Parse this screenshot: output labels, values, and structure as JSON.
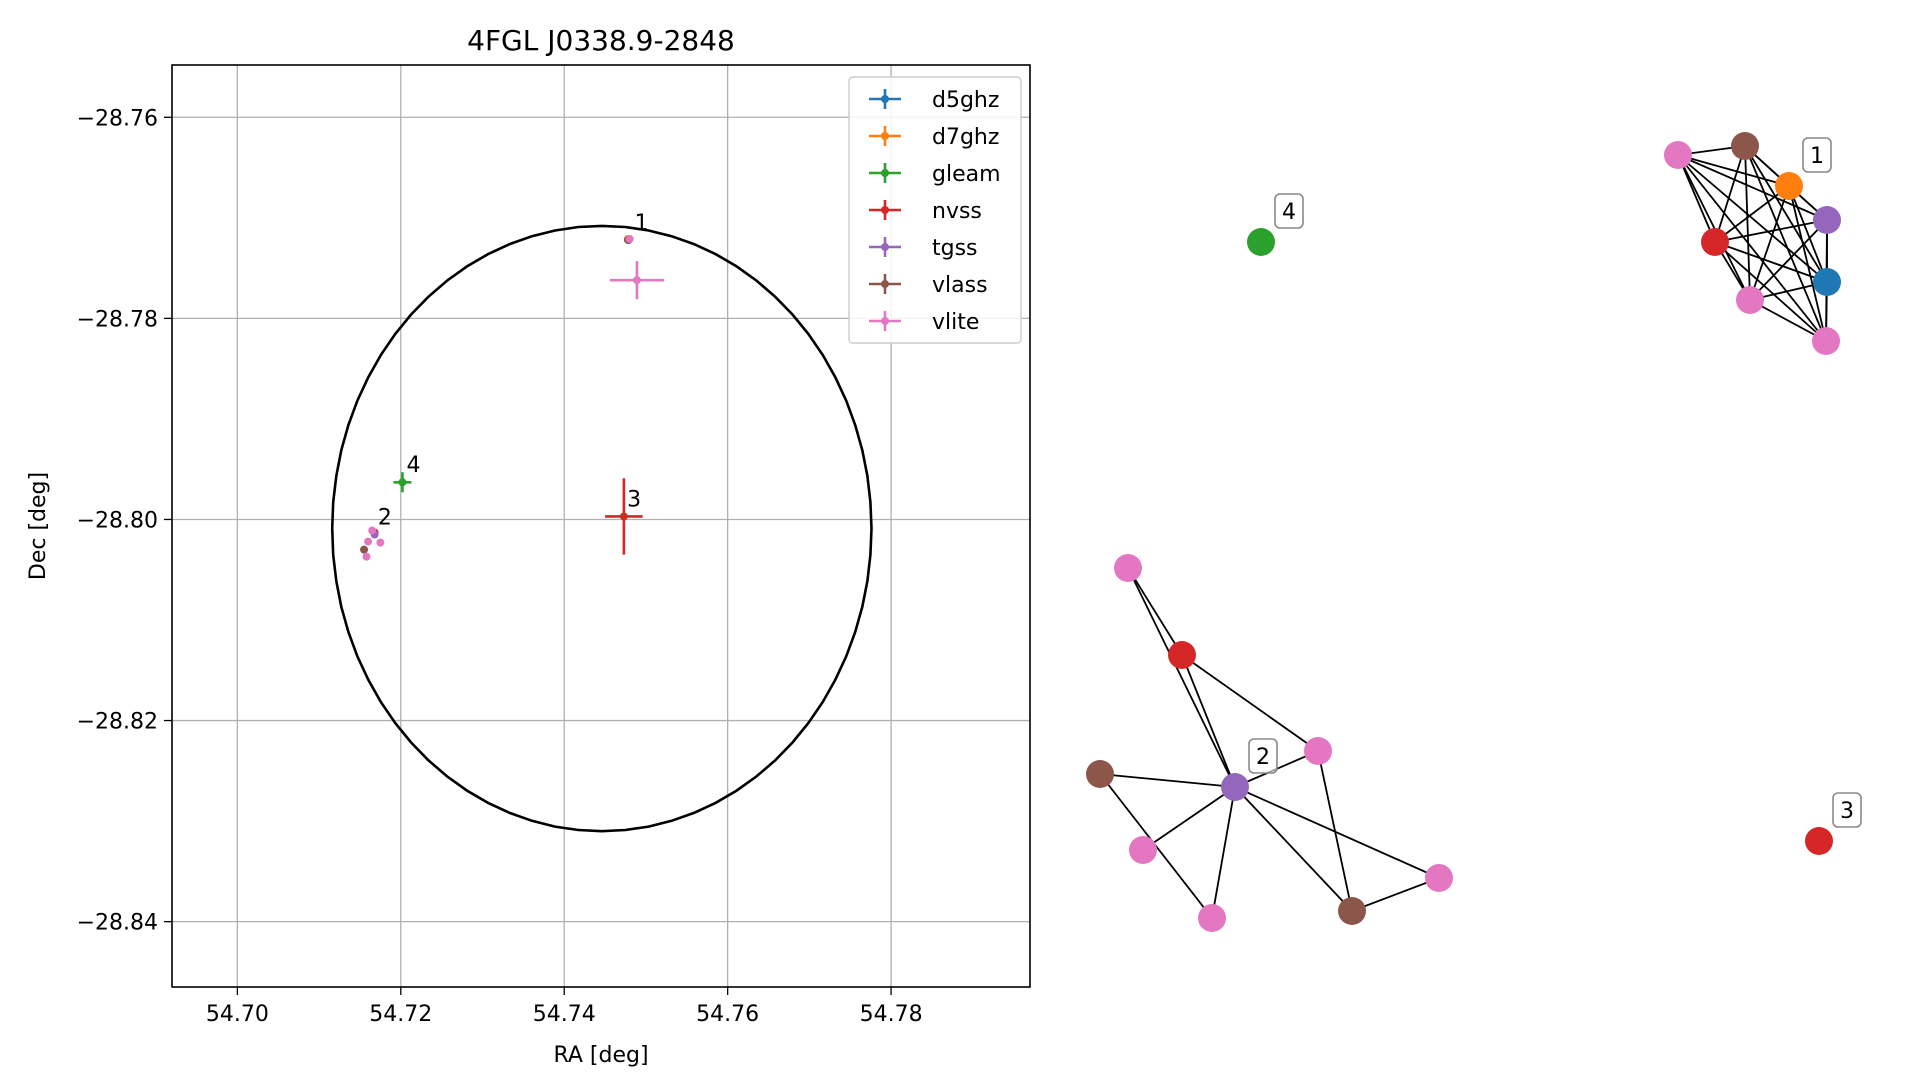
{
  "chart_data": [
    {
      "type": "scatter",
      "title": "4FGL J0338.9-2848",
      "xlabel": "RA [deg]",
      "ylabel": "Dec [deg]",
      "xlim": [
        54.692,
        54.797
      ],
      "ylim": [
        -28.8465,
        -28.7548
      ],
      "xticks": [
        54.7,
        54.72,
        54.74,
        54.76,
        54.78
      ],
      "xtick_labels": [
        "54.70",
        "54.72",
        "54.74",
        "54.76",
        "54.78"
      ],
      "yticks": [
        -28.76,
        -28.78,
        -28.8,
        -28.82,
        -28.84
      ],
      "ytick_labels": [
        "−28.76",
        "−28.78",
        "−28.80",
        "−28.82",
        "−28.84"
      ],
      "grid": true,
      "legend_position": "top-right",
      "series": [
        {
          "name": "d5ghz",
          "color": "#1f77b4",
          "points": [
            {
              "x": 54.7479,
              "y": -28.7722,
              "xerr": 0.0002,
              "yerr": 0.0002
            }
          ]
        },
        {
          "name": "d7ghz",
          "color": "#ff7f0e",
          "points": [
            {
              "x": 54.7478,
              "y": -28.7721,
              "xerr": 0.0002,
              "yerr": 0.0002
            }
          ]
        },
        {
          "name": "gleam",
          "color": "#2ca02c",
          "points": [
            {
              "x": 54.7202,
              "y": -28.7963,
              "xerr": 0.0011,
              "yerr": 0.001
            }
          ]
        },
        {
          "name": "nvss",
          "color": "#d62728",
          "points": [
            {
              "x": 54.7473,
              "y": -28.7997,
              "xerr": 0.0023,
              "yerr": 0.0038
            },
            {
              "x": 54.7168,
              "y": -28.8013,
              "xerr": 0.0003,
              "yerr": 0.0003
            }
          ]
        },
        {
          "name": "tgss",
          "color": "#9467bd",
          "points": [
            {
              "x": 54.7479,
              "y": -28.7722,
              "xerr": 0.0002,
              "yerr": 0.0002
            },
            {
              "x": 54.7168,
              "y": -28.8015,
              "xerr": 0.0003,
              "yerr": 0.0003
            }
          ]
        },
        {
          "name": "vlass",
          "color": "#8c564b",
          "points": [
            {
              "x": 54.7478,
              "y": -28.7722,
              "xerr": 0.0001,
              "yerr": 0.0001
            },
            {
              "x": 54.7155,
              "y": -28.803,
              "xerr": 0.0002,
              "yerr": 0.0002
            }
          ]
        },
        {
          "name": "vlite",
          "color": "#e377c2",
          "points": [
            {
              "x": 54.748,
              "y": -28.7721,
              "xerr": 0.0003,
              "yerr": 0.0003
            },
            {
              "x": 54.7489,
              "y": -28.7762,
              "xerr": 0.0033,
              "yerr": 0.0019
            },
            {
              "x": 54.7165,
              "y": -28.8011,
              "xerr": 0.0003,
              "yerr": 0.0003
            },
            {
              "x": 54.716,
              "y": -28.8022,
              "xerr": 0.0003,
              "yerr": 0.0003
            },
            {
              "x": 54.7175,
              "y": -28.8023,
              "xerr": 0.0003,
              "yerr": 0.0003
            },
            {
              "x": 54.7158,
              "y": -28.8037,
              "xerr": 0.0003,
              "yerr": 0.0003
            }
          ]
        }
      ],
      "ellipse": {
        "center": [
          54.7446,
          -28.8009
        ],
        "ra_semi_axis": 0.033,
        "dec_semi_axis": 0.0301,
        "color": "#000000"
      },
      "annotations": [
        {
          "text": "1",
          "x": 54.7486,
          "y": -28.7712
        },
        {
          "text": "2",
          "x": 54.7172,
          "y": -28.8005
        },
        {
          "text": "3",
          "x": 54.7477,
          "y": -28.7987
        },
        {
          "text": "4",
          "x": 54.7207,
          "y": -28.7953
        }
      ]
    },
    {
      "type": "network",
      "node_colors": {
        "d5ghz": "#1f77b4",
        "d7ghz": "#ff7f0e",
        "gleam": "#2ca02c",
        "nvss": "#d62728",
        "tgss": "#9467bd",
        "vlass": "#8c564b",
        "vlite": "#e377c2"
      },
      "groups": [
        {
          "label": "1",
          "nodes": [
            {
              "id": "a",
              "catalog": "vlite"
            },
            {
              "id": "b",
              "catalog": "vlass"
            },
            {
              "id": "c",
              "catalog": "d7ghz"
            },
            {
              "id": "d",
              "catalog": "tgss"
            },
            {
              "id": "e",
              "catalog": "nvss"
            },
            {
              "id": "f",
              "catalog": "d5ghz"
            },
            {
              "id": "g",
              "catalog": "vlite"
            },
            {
              "id": "h",
              "catalog": "vlite"
            }
          ],
          "fully_connected": true
        },
        {
          "label": "4",
          "nodes": [
            {
              "id": "m",
              "catalog": "gleam"
            }
          ],
          "fully_connected": true
        },
        {
          "label": "2",
          "nodes": [
            {
              "id": "n1",
              "catalog": "vlite"
            },
            {
              "id": "n2",
              "catalog": "nvss"
            },
            {
              "id": "n3",
              "catalog": "tgss"
            },
            {
              "id": "n4",
              "catalog": "vlite"
            },
            {
              "id": "n5",
              "catalog": "vlass"
            },
            {
              "id": "n6",
              "catalog": "vlite"
            },
            {
              "id": "n7",
              "catalog": "vlite"
            },
            {
              "id": "n8",
              "catalog": "vlass"
            },
            {
              "id": "n9",
              "catalog": "vlite"
            }
          ],
          "edges": [
            [
              "n1",
              "n2"
            ],
            [
              "n1",
              "n3"
            ],
            [
              "n2",
              "n3"
            ],
            [
              "n2",
              "n4"
            ],
            [
              "n4",
              "n3"
            ],
            [
              "n4",
              "n8"
            ],
            [
              "n5",
              "n3"
            ],
            [
              "n5",
              "n7"
            ],
            [
              "n6",
              "n3"
            ],
            [
              "n7",
              "n3"
            ],
            [
              "n3",
              "n8"
            ],
            [
              "n3",
              "n9"
            ],
            [
              "n8",
              "n9"
            ]
          ]
        },
        {
          "label": "3",
          "nodes": [
            {
              "id": "r",
              "catalog": "nvss"
            }
          ],
          "fully_connected": true
        }
      ]
    }
  ]
}
